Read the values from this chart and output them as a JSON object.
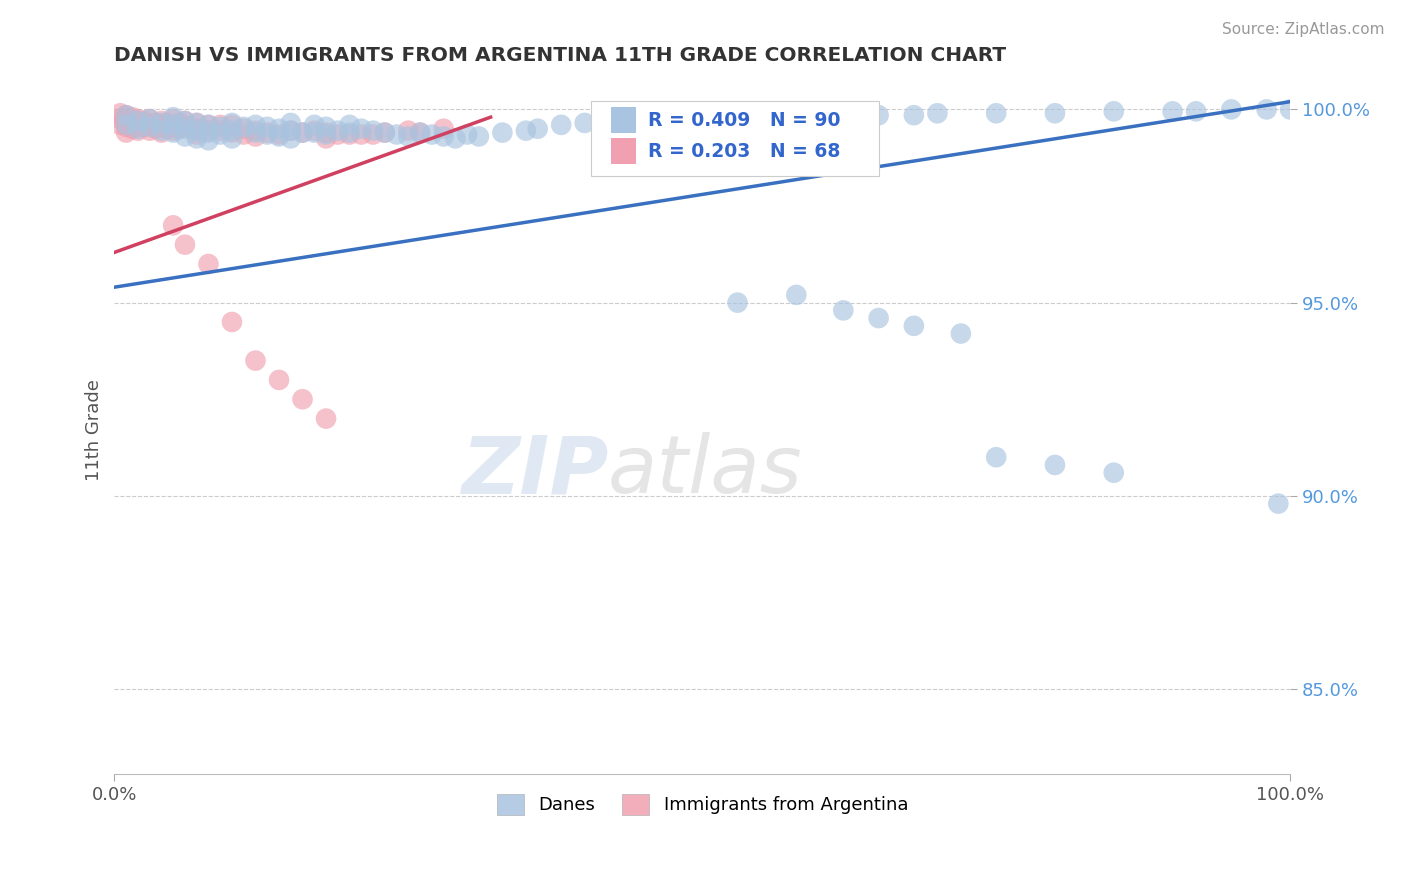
{
  "title": "DANISH VS IMMIGRANTS FROM ARGENTINA 11TH GRADE CORRELATION CHART",
  "source": "Source: ZipAtlas.com",
  "ylabel": "11th Grade",
  "xlim": [
    0.0,
    1.0
  ],
  "ylim": [
    0.828,
    1.006
  ],
  "legend_blue_label": "Danes",
  "legend_pink_label": "Immigrants from Argentina",
  "R_blue": "R = 0.409",
  "N_blue": "N = 90",
  "R_pink": "R = 0.203",
  "N_pink": "N = 68",
  "blue_color": "#a8c4e0",
  "pink_color": "#f0a0b0",
  "blue_line_color": "#3a70c0",
  "pink_line_color": "#d04060",
  "blue_line_x": [
    0.0,
    1.0
  ],
  "blue_line_y": [
    0.954,
    1.002
  ],
  "pink_line_x": [
    0.0,
    0.32
  ],
  "pink_line_y": [
    0.963,
    0.998
  ],
  "danes_x": [
    0.01,
    0.01,
    0.02,
    0.02,
    0.03,
    0.03,
    0.04,
    0.04,
    0.05,
    0.05,
    0.05,
    0.06,
    0.06,
    0.06,
    0.07,
    0.07,
    0.07,
    0.08,
    0.08,
    0.08,
    0.09,
    0.09,
    0.1,
    0.1,
    0.1,
    0.11,
    0.12,
    0.12,
    0.13,
    0.13,
    0.14,
    0.14,
    0.15,
    0.15,
    0.15,
    0.16,
    0.17,
    0.17,
    0.18,
    0.18,
    0.19,
    0.2,
    0.2,
    0.21,
    0.22,
    0.23,
    0.24,
    0.25,
    0.26,
    0.27,
    0.28,
    0.29,
    0.3,
    0.31,
    0.33,
    0.35,
    0.36,
    0.38,
    0.4,
    0.42,
    0.44,
    0.46,
    0.5,
    0.52,
    0.55,
    0.58,
    0.62,
    0.65,
    0.68,
    0.7,
    0.75,
    0.8,
    0.85,
    0.9,
    0.92,
    0.95,
    0.98,
    1.0,
    0.53,
    0.58,
    0.62,
    0.65,
    0.68,
    0.72,
    0.75,
    0.8,
    0.85,
    0.99
  ],
  "danes_y": [
    0.9985,
    0.996,
    0.997,
    0.995,
    0.9975,
    0.9955,
    0.9965,
    0.9945,
    0.998,
    0.996,
    0.994,
    0.997,
    0.995,
    0.993,
    0.9965,
    0.9945,
    0.9925,
    0.996,
    0.994,
    0.992,
    0.9955,
    0.9935,
    0.9965,
    0.9945,
    0.9925,
    0.9955,
    0.996,
    0.994,
    0.9955,
    0.9935,
    0.995,
    0.993,
    0.9965,
    0.9945,
    0.9925,
    0.994,
    0.996,
    0.994,
    0.9955,
    0.9935,
    0.9945,
    0.996,
    0.994,
    0.995,
    0.9945,
    0.994,
    0.9935,
    0.993,
    0.994,
    0.9935,
    0.993,
    0.9925,
    0.9935,
    0.993,
    0.994,
    0.9945,
    0.995,
    0.996,
    0.9965,
    0.997,
    0.9975,
    0.998,
    0.997,
    0.998,
    0.9975,
    0.998,
    0.9985,
    0.9985,
    0.9985,
    0.999,
    0.999,
    0.999,
    0.9995,
    0.9995,
    0.9995,
    1.0,
    1.0,
    1.0,
    0.95,
    0.952,
    0.948,
    0.946,
    0.944,
    0.942,
    0.91,
    0.908,
    0.906,
    0.898
  ],
  "arg_x": [
    0.005,
    0.005,
    0.005,
    0.01,
    0.01,
    0.01,
    0.01,
    0.015,
    0.015,
    0.015,
    0.02,
    0.02,
    0.02,
    0.025,
    0.025,
    0.03,
    0.03,
    0.03,
    0.035,
    0.035,
    0.04,
    0.04,
    0.04,
    0.045,
    0.045,
    0.05,
    0.05,
    0.05,
    0.055,
    0.055,
    0.06,
    0.06,
    0.07,
    0.07,
    0.07,
    0.08,
    0.08,
    0.09,
    0.09,
    0.1,
    0.1,
    0.11,
    0.11,
    0.12,
    0.12,
    0.13,
    0.14,
    0.15,
    0.16,
    0.17,
    0.18,
    0.18,
    0.19,
    0.2,
    0.21,
    0.22,
    0.23,
    0.25,
    0.26,
    0.28,
    0.05,
    0.06,
    0.08,
    0.1,
    0.12,
    0.14,
    0.16,
    0.18
  ],
  "arg_y": [
    0.999,
    0.9975,
    0.996,
    0.9985,
    0.997,
    0.9955,
    0.994,
    0.998,
    0.9965,
    0.995,
    0.9975,
    0.996,
    0.9945,
    0.997,
    0.9955,
    0.9975,
    0.996,
    0.9945,
    0.9965,
    0.995,
    0.997,
    0.9955,
    0.994,
    0.9965,
    0.995,
    0.9975,
    0.996,
    0.9945,
    0.9965,
    0.995,
    0.997,
    0.9955,
    0.9965,
    0.995,
    0.9935,
    0.996,
    0.9945,
    0.996,
    0.9945,
    0.996,
    0.994,
    0.995,
    0.9935,
    0.9945,
    0.993,
    0.994,
    0.9935,
    0.9945,
    0.994,
    0.9945,
    0.994,
    0.9925,
    0.9935,
    0.9935,
    0.9935,
    0.9935,
    0.994,
    0.9945,
    0.994,
    0.995,
    0.97,
    0.965,
    0.96,
    0.945,
    0.935,
    0.93,
    0.925,
    0.92
  ]
}
